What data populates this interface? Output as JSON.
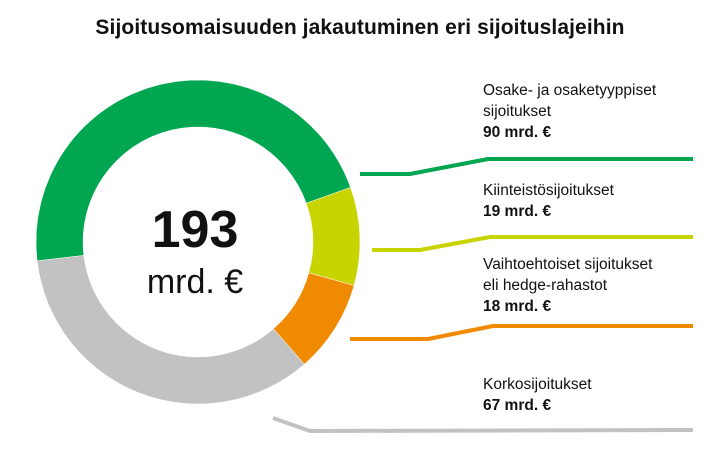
{
  "chart_data": {
    "type": "pie",
    "title": "Sijoitusomaisuuden jakautuminen eri sijoituslajeihin",
    "center_value": "193",
    "center_unit": "mrd. €",
    "unit": "mrd. €",
    "categories": [
      "Osake- ja osaketyyppiset sijoitukset",
      "Kiinteistösijoitukset",
      "Vaihtoehtoiset sijoitukset eli hedge-rahastot",
      "Korkosijoitukset"
    ],
    "values": [
      90,
      19,
      18,
      67
    ],
    "value_labels": [
      "90 mrd. €",
      "19 mrd. €",
      "18 mrd. €",
      "67 mrd. €"
    ],
    "colors": [
      "#00a650",
      "#c8d400",
      "#f08a00",
      "#c2c2c2"
    ],
    "legend": [
      {
        "name_lines": [
          "Osake- ja osaketyyppiset",
          "sijoitukset"
        ],
        "value": "90 mrd. €"
      },
      {
        "name_lines": [
          "Kiinteistösijoitukset"
        ],
        "value": "19 mrd. €"
      },
      {
        "name_lines": [
          "Vaihtoehtoiset sijoitukset",
          "eli hedge-rahastot"
        ],
        "value": "18 mrd. €"
      },
      {
        "name_lines": [
          "Korkosijoitukset"
        ],
        "value": "67 mrd. €"
      }
    ],
    "legend_placement": "right"
  }
}
